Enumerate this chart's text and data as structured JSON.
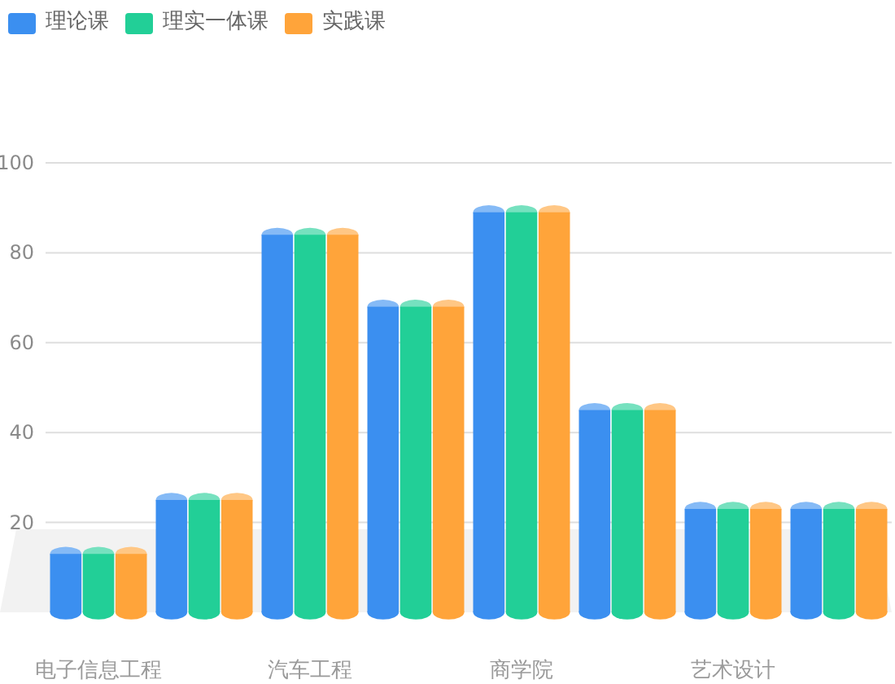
{
  "chart_data": {
    "type": "bar",
    "categories": [
      "电子信息工程",
      null,
      "汽车工程",
      null,
      "商学院",
      null,
      "艺术设计",
      null
    ],
    "series": [
      {
        "name": "理论课",
        "color": "#3b8ff0",
        "values": [
          13,
          25,
          84,
          68,
          89,
          45,
          23,
          23
        ]
      },
      {
        "name": "理实一体课",
        "color": "#22cf97",
        "values": [
          13,
          25,
          84,
          68,
          89,
          45,
          23,
          23
        ]
      },
      {
        "name": "实践课",
        "color": "#ffa43a",
        "values": [
          13,
          25,
          84,
          68,
          89,
          45,
          23,
          23
        ]
      }
    ],
    "ylim": [
      0,
      100
    ],
    "yticks": [
      20,
      40,
      60,
      80,
      100
    ],
    "grid": "y",
    "legend": "top left"
  }
}
